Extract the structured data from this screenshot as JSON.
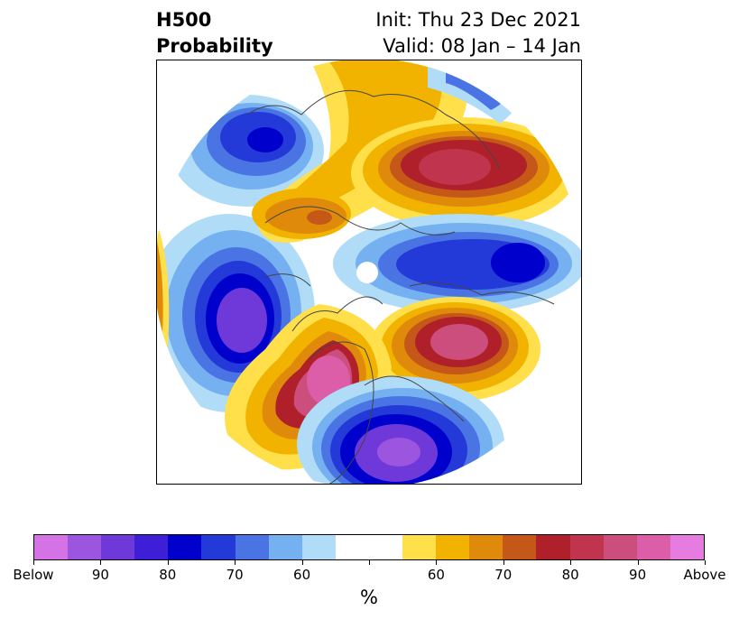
{
  "title": {
    "left_line1": "H500",
    "left_line2": "Probability",
    "right_line1": "Init: Thu 23 Dec 2021",
    "right_line2": "Valid: 08 Jan – 14 Jan"
  },
  "colorbar": {
    "colors": [
      "#d572e6",
      "#9b55df",
      "#6f38d8",
      "#3f1ed8",
      "#0000cc",
      "#2339d8",
      "#4a73e3",
      "#75b1f0",
      "#b0dcf8",
      "#ffffff",
      "#ffffff",
      "#ffe04a",
      "#f1b300",
      "#e08a0c",
      "#c55818",
      "#b0202a",
      "#c0354d",
      "#cc4e7c",
      "#dc5ea9",
      "#e67be0"
    ],
    "tick_labels": [
      "Below",
      "90",
      "80",
      "70",
      "60",
      "",
      "60",
      "70",
      "80",
      "90",
      "Above"
    ],
    "unit": "%"
  },
  "map": {
    "projection": "north-polar-stereographic",
    "anomaly_centers": [
      {
        "region": "north-america-west",
        "sign": "above",
        "level": "90"
      },
      {
        "region": "eastern-pacific",
        "sign": "below",
        "level": "90"
      },
      {
        "region": "east-asia",
        "sign": "below",
        "level": "90"
      },
      {
        "region": "western-siberia",
        "sign": "above",
        "level": "90"
      },
      {
        "region": "north-atlantic",
        "sign": "above",
        "level": "90"
      },
      {
        "region": "europe",
        "sign": "below",
        "level": "90"
      }
    ]
  }
}
